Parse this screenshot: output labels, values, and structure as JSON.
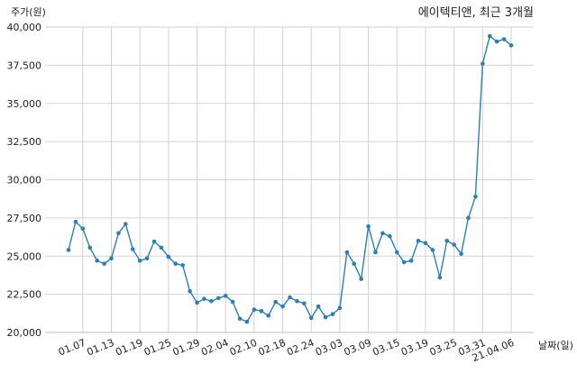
{
  "chart_data": {
    "type": "line",
    "title": "에이텍티앤, 최근 3개월",
    "xlabel": "날짜(일)",
    "ylabel": "주가(원)",
    "grid": true,
    "legend": "none",
    "color": "#2e7fb0",
    "ylim": [
      20000,
      40000
    ],
    "yticks": [
      20000,
      22500,
      25000,
      27500,
      30000,
      32500,
      35000,
      37500,
      40000
    ],
    "ytick_labels": [
      "20,000",
      "22,500",
      "25,000",
      "27,500",
      "30,000",
      "32,500",
      "35,000",
      "37,500",
      "40,000"
    ],
    "xtick_labels": [
      "01.07",
      "01.13",
      "01.19",
      "01.25",
      "01.29",
      "02.04",
      "02.10",
      "02.18",
      "02.24",
      "03.03",
      "03.09",
      "03.15",
      "03.19",
      "03.25",
      "03.31",
      "21.04.06"
    ],
    "xtick_index": [
      2,
      6,
      10,
      14,
      18,
      22,
      26,
      30,
      34,
      38,
      42,
      46,
      50,
      54,
      58,
      62
    ],
    "values": [
      25400,
      27250,
      26800,
      25550,
      24700,
      24500,
      24850,
      26500,
      27100,
      25450,
      24700,
      24850,
      25950,
      25550,
      24950,
      24500,
      24400,
      22700,
      21950,
      22200,
      22050,
      22250,
      22400,
      22000,
      20900,
      20700,
      21500,
      21400,
      21100,
      22000,
      21700,
      22300,
      22050,
      21900,
      20950,
      21700,
      21000,
      21200,
      21600,
      25250,
      24500,
      23500,
      26950,
      25250,
      26500,
      26300,
      25250,
      24600,
      24700,
      26000,
      25850,
      25400,
      23600,
      26000,
      25750,
      25150,
      27500,
      28900,
      37600,
      39400,
      39050,
      39200,
      38800
    ]
  }
}
